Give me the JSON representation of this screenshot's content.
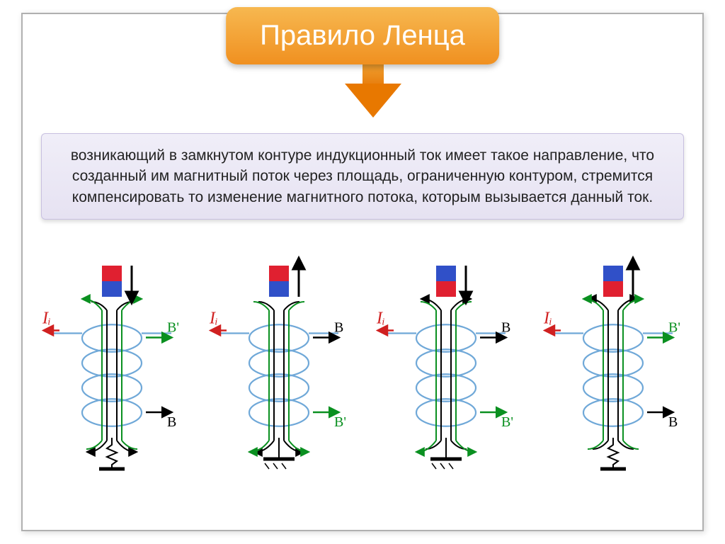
{
  "title": "Правило Ленца",
  "definition": "возникающий в замкнутом контуре индукционный ток имеет такое направление, что созданный им магнитный поток через площадь, ограниченную контуром, стремится компенсировать то изменение магнитного потока, которым вызывается данный ток.",
  "colors": {
    "title_bg_top": "#f7b850",
    "title_bg_bottom": "#f09020",
    "title_text": "#ffffff",
    "arrow_fill": "#e87800",
    "def_bg_top": "#f0eef8",
    "def_bg_bottom": "#e6e2f2",
    "def_border": "#c8c0e0",
    "frame_border": "#b0b0b0",
    "coil": "#6fa8d8",
    "green": "#0a9020",
    "black": "#000000",
    "red": "#d02020",
    "magnet_red": "#e02030",
    "magnet_blue": "#3050c8"
  },
  "labels": {
    "Ii": "Iᵢ",
    "B": "В",
    "Bprime": "В'"
  },
  "diagrams": [
    {
      "magnet_top_color": "#e02030",
      "magnet_bottom_color": "#3050c8",
      "magnet_arrow": "down",
      "field_inside_color": "#000000",
      "field_inside_dir": "down",
      "induced_inside_color": "#0a9020",
      "induced_inside_dir": "up",
      "Ii_side": "left",
      "Ii_at_top": true,
      "B_at_top_right": false,
      "Bprime_top_right": true,
      "B_at_bottom_right": true,
      "Bprime_bottom_right": false,
      "ground_style": "resistor"
    },
    {
      "magnet_top_color": "#e02030",
      "magnet_bottom_color": "#3050c8",
      "magnet_arrow": "up",
      "field_inside_color": "#000000",
      "field_inside_dir": "down",
      "induced_inside_color": "#0a9020",
      "induced_inside_dir": "down",
      "Ii_side": "left",
      "Ii_at_top": true,
      "B_at_top_right": true,
      "Bprime_top_right": false,
      "B_at_bottom_right": false,
      "Bprime_bottom_right": true,
      "ground_style": "flat"
    },
    {
      "magnet_top_color": "#3050c8",
      "magnet_bottom_color": "#e02030",
      "magnet_arrow": "down",
      "field_inside_color": "#000000",
      "field_inside_dir": "up",
      "induced_inside_color": "#0a9020",
      "induced_inside_dir": "down",
      "Ii_side": "left",
      "Ii_at_top": true,
      "B_at_top_right": true,
      "Bprime_top_right": false,
      "B_at_bottom_right": false,
      "Bprime_bottom_right": true,
      "ground_style": "flat"
    },
    {
      "magnet_top_color": "#3050c8",
      "magnet_bottom_color": "#e02030",
      "magnet_arrow": "up",
      "field_inside_color": "#000000",
      "field_inside_dir": "up",
      "induced_inside_color": "#0a9020",
      "induced_inside_dir": "up",
      "Ii_side": "left",
      "Ii_at_top": true,
      "B_at_top_right": false,
      "Bprime_top_right": true,
      "B_at_bottom_right": true,
      "Bprime_bottom_right": false,
      "ground_style": "resistor"
    }
  ]
}
